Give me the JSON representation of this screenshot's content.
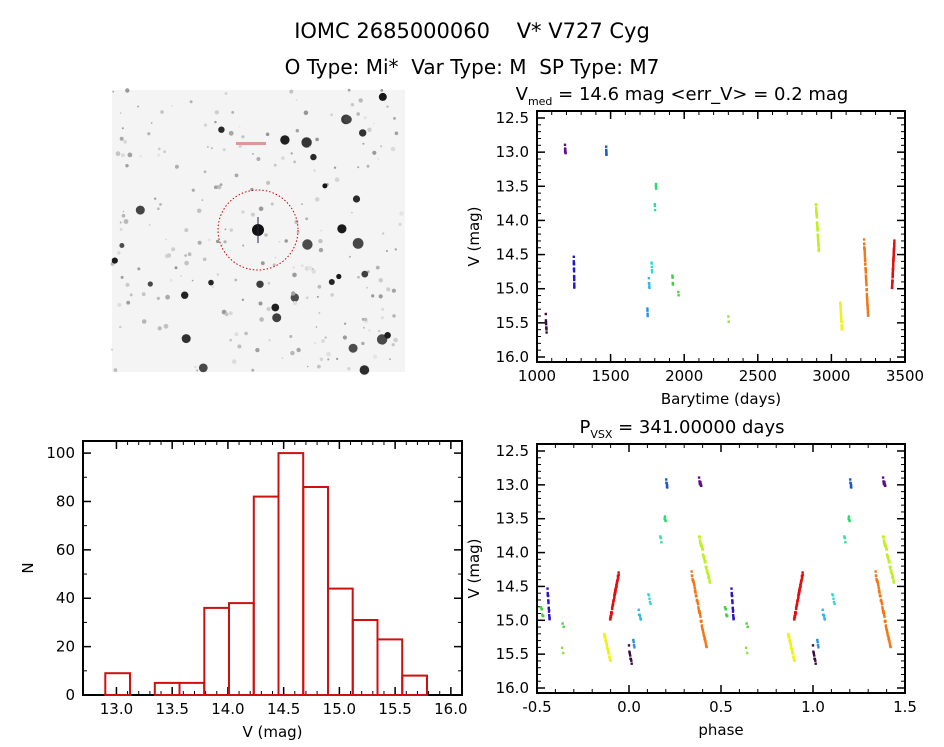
{
  "header": {
    "title_line1": "IOMC 2685000060    V* V727 Cyg",
    "title_line2": "O Type: Mi*  Var Type: M  SP Type: M7"
  },
  "chart_data": [
    {
      "id": "finder-image",
      "type": "image",
      "description_text": "",
      "circle_color": "#cc0000"
    },
    {
      "id": "lightcurve",
      "type": "scatter",
      "title_main": "V",
      "title_sub": "med",
      "title_rest": " = 14.6 mag <err_V> = 0.2 mag",
      "xlabel": "Barytime (days)",
      "ylabel": "V (mag)",
      "xlim": [
        1000,
        3500
      ],
      "ylim": [
        16.0,
        12.5
      ],
      "xticks": [
        1000,
        1500,
        2000,
        2500,
        3000,
        3500
      ],
      "yticks": [
        12.5,
        13.0,
        13.5,
        14.0,
        14.5,
        15.0,
        15.5,
        16.0
      ],
      "clusters": [
        {
          "t": [
            1060,
            1065
          ],
          "mag": [
            15.4,
            15.65
          ],
          "n": 8,
          "dir": 1,
          "color": "#3a0a40"
        },
        {
          "t": [
            1190,
            1194
          ],
          "mag": [
            12.92,
            13.02
          ],
          "n": 8,
          "dir": 1,
          "color": "#5b0e8a"
        },
        {
          "t": [
            1250,
            1254
          ],
          "mag": [
            14.55,
            15.0
          ],
          "n": 16,
          "dir": 1,
          "color": "#2a16c8"
        },
        {
          "t": [
            1470,
            1472
          ],
          "mag": [
            12.93,
            13.05
          ],
          "n": 6,
          "dir": 1,
          "color": "#1a5ac8"
        },
        {
          "t": [
            1750,
            1752
          ],
          "mag": [
            15.32,
            15.38
          ],
          "n": 4,
          "dir": 1,
          "color": "#2a90e0"
        },
        {
          "t": [
            1760,
            1764
          ],
          "mag": [
            14.87,
            15.0
          ],
          "n": 6,
          "dir": 1,
          "color": "#30b8e8"
        },
        {
          "t": [
            1778,
            1782
          ],
          "mag": [
            14.6,
            14.78
          ],
          "n": 5,
          "dir": 1,
          "color": "#30d8d8"
        },
        {
          "t": [
            1800,
            1802
          ],
          "mag": [
            13.78,
            13.82
          ],
          "n": 3,
          "dir": 1,
          "color": "#30e0a0"
        },
        {
          "t": [
            1808,
            1810
          ],
          "mag": [
            13.47,
            13.53
          ],
          "n": 4,
          "dir": 1,
          "color": "#30d870"
        },
        {
          "t": [
            1920,
            1924
          ],
          "mag": [
            14.8,
            14.95
          ],
          "n": 6,
          "dir": 1,
          "color": "#40d040"
        },
        {
          "t": [
            1960,
            1962
          ],
          "mag": [
            15.03,
            15.07
          ],
          "n": 2,
          "dir": 1,
          "color": "#50d040"
        },
        {
          "t": [
            2300,
            2302
          ],
          "mag": [
            15.43,
            15.47
          ],
          "n": 2,
          "dir": 1,
          "color": "#90e040"
        },
        {
          "t": [
            2895,
            2915
          ],
          "mag": [
            13.75,
            14.45
          ],
          "n": 40,
          "dir": 1,
          "color": "#c0f020"
        },
        {
          "t": [
            3060,
            3072
          ],
          "mag": [
            15.2,
            15.62
          ],
          "n": 30,
          "dir": 1,
          "color": "#f0f020"
        },
        {
          "t": [
            3222,
            3250
          ],
          "mag": [
            14.3,
            15.42
          ],
          "n": 50,
          "dir": 1,
          "color": "#f07818"
        },
        {
          "t": [
            3412,
            3428
          ],
          "mag": [
            14.3,
            15.0
          ],
          "n": 50,
          "dir": -1,
          "color": "#e01010"
        }
      ]
    },
    {
      "id": "histogram",
      "type": "bar",
      "xlabel": "V (mag)",
      "ylabel": "N",
      "xlim": [
        12.7,
        16.1
      ],
      "ylim": [
        0,
        105
      ],
      "xticks": [
        13.0,
        13.5,
        14.0,
        14.5,
        15.0,
        15.5,
        16.0
      ],
      "yticks": [
        0,
        20,
        40,
        60,
        80,
        100
      ],
      "bin_start": 12.9,
      "bin_width": 0.222,
      "values": [
        9,
        0,
        5,
        5,
        36,
        38,
        82,
        100,
        86,
        44,
        31,
        23,
        8
      ],
      "color": "#cc1111"
    },
    {
      "id": "phased",
      "type": "scatter",
      "title_main": "P",
      "title_sub": "VSX",
      "title_rest": " = 341.00000 days",
      "period_days": 341.0,
      "xlabel": "phase",
      "ylabel": "V (mag)",
      "xlim": [
        -0.5,
        1.5
      ],
      "ylim": [
        16.0,
        12.5
      ],
      "xticks": [
        -0.5,
        0.0,
        0.5,
        1.0,
        1.5
      ],
      "yticks": [
        12.5,
        13.0,
        13.5,
        14.0,
        14.5,
        15.0,
        15.5,
        16.0
      ]
    }
  ]
}
